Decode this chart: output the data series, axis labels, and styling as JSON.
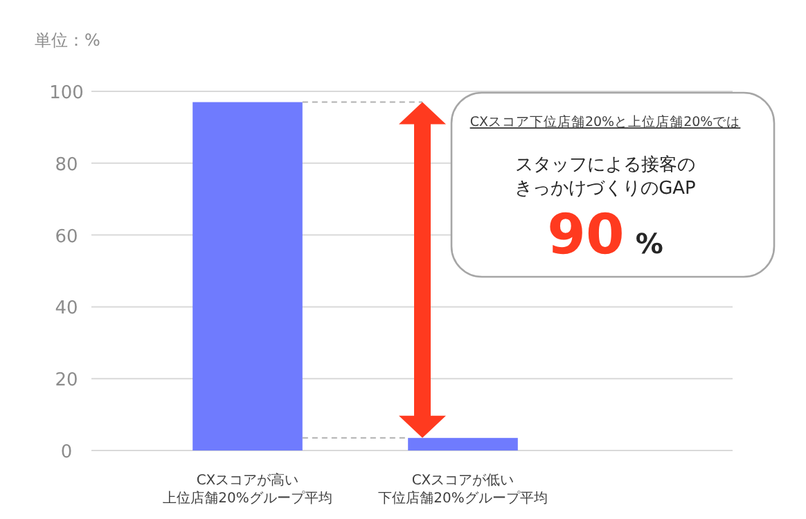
{
  "chart_data": {
    "type": "bar",
    "ylabel": "単位：%",
    "categories": [
      "CXスコアが高い上位店舗20%グループ平均",
      "CXスコアが低い下位店舗20%グループ平均"
    ],
    "values": [
      97,
      3.5
    ],
    "color": "#6f7bfe",
    "ylim": [
      0,
      100
    ],
    "yticks": [
      0,
      20,
      40,
      60,
      80,
      100
    ],
    "grid": "y",
    "annotations": [
      "CXスコア下位店舗20%と上位店舗20%では",
      "スタッフによる接客のきっかけづくりのGAP",
      "90 %"
    ]
  }
}
